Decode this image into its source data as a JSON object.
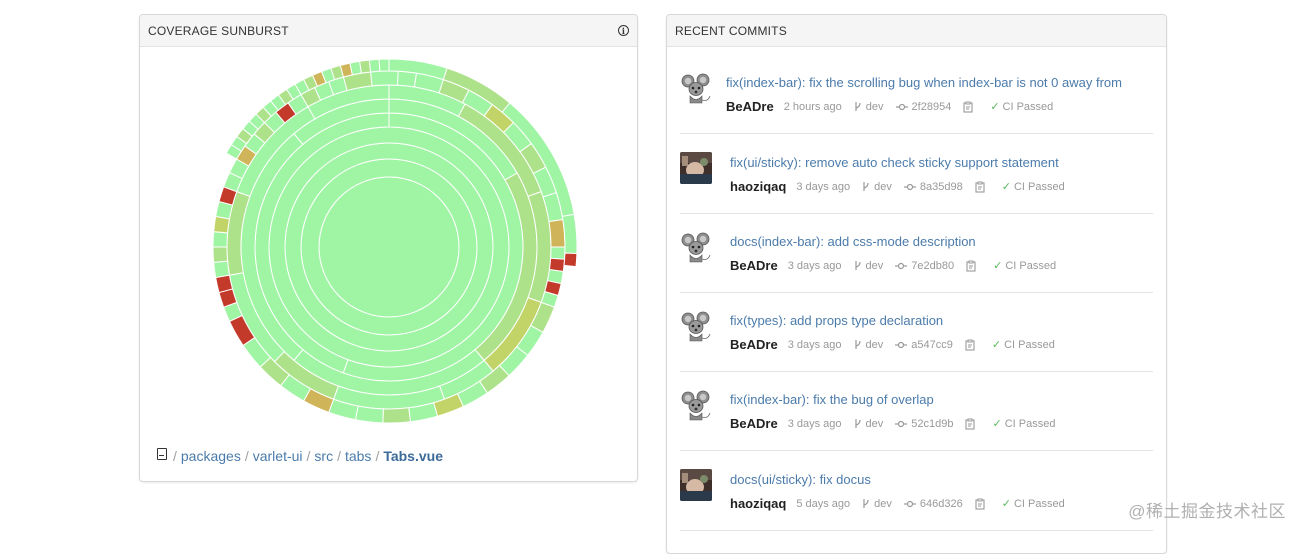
{
  "sunburst_panel": {
    "title": "COVERAGE SUNBURST",
    "info_icon": "info-icon",
    "breadcrumb_icon": "book-icon",
    "breadcrumb": [
      "packages",
      "varlet-ui",
      "src",
      "tabs",
      "Tabs.vue"
    ],
    "colors": {
      "high": "#9ff5a4",
      "medium": "#aee28a",
      "mid_low": "#c2d467",
      "low": "#d0b45a",
      "fail": "#c33a2b"
    }
  },
  "commits_panel": {
    "title": "RECENT COMMITS",
    "commits": [
      {
        "message": "fix(index-bar): fix the scrolling bug when index-bar is not 0 away from the",
        "author": "BeADre",
        "avatar": "mouse-avatar",
        "time": "2 hours ago",
        "branch": "dev",
        "sha": "2f28954",
        "ci": "CI Passed"
      },
      {
        "message": "fix(ui/sticky): remove auto check sticky support statement",
        "author": "haoziqaq",
        "avatar": "photo-avatar",
        "time": "3 days ago",
        "branch": "dev",
        "sha": "8a35d98",
        "ci": "CI Passed"
      },
      {
        "message": "docs(index-bar): add css-mode description",
        "author": "BeADre",
        "avatar": "mouse-avatar",
        "time": "3 days ago",
        "branch": "dev",
        "sha": "7e2db80",
        "ci": "CI Passed"
      },
      {
        "message": "fix(types): add props type declaration",
        "author": "BeADre",
        "avatar": "mouse-avatar",
        "time": "3 days ago",
        "branch": "dev",
        "sha": "a547cc9",
        "ci": "CI Passed"
      },
      {
        "message": "fix(index-bar): fix the bug of overlap",
        "author": "BeADre",
        "avatar": "mouse-avatar",
        "time": "3 days ago",
        "branch": "dev",
        "sha": "52c1d9b",
        "ci": "CI Passed"
      },
      {
        "message": "docs(ui/sticky): fix docus",
        "author": "haoziqaq",
        "avatar": "photo-avatar",
        "time": "5 days ago",
        "branch": "dev",
        "sha": "646d326",
        "ci": "CI Passed"
      }
    ]
  },
  "watermark": "@稀土掘金技术社区"
}
